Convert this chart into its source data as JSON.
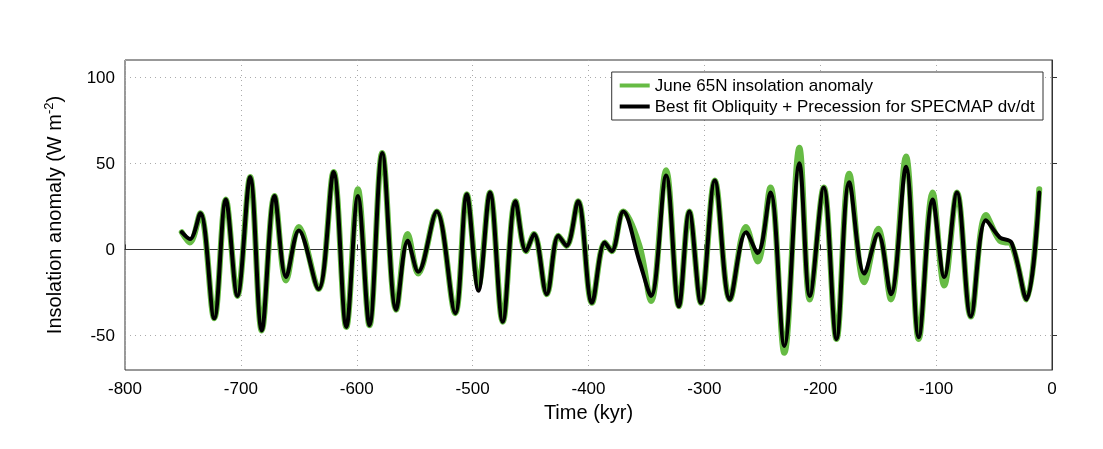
{
  "chart_data": {
    "type": "line",
    "xlabel": "Time (kyr)",
    "ylabel": "Insolation anomaly (W m$^{-2}$)",
    "x": [
      -751,
      -744,
      -735,
      -723,
      -713,
      -703,
      -692,
      -682,
      -671,
      -661,
      -650,
      -633,
      -620,
      -609,
      -599,
      -589,
      -578,
      -566,
      -556,
      -547,
      -531,
      -515,
      -505,
      -495,
      -485,
      -474,
      -463,
      -454,
      -447,
      -436,
      -426,
      -419,
      -409,
      -397,
      -386,
      -380,
      -370,
      -356,
      -346,
      -333,
      -322,
      -313,
      -303,
      -291,
      -278,
      -264,
      -254,
      -243,
      -231,
      -218,
      -209,
      -197,
      -186,
      -175,
      -162,
      -150,
      -139,
      -126,
      -115,
      -103,
      -93,
      -82,
      -70,
      -57,
      -45,
      -35,
      -22,
      -11
    ],
    "series": [
      {
        "name": "June 65N insolation anomaly",
        "color": "#66bb44",
        "values": [
          10,
          4,
          21,
          -40,
          29,
          -27,
          42,
          -47,
          31,
          -18,
          13,
          -23,
          45,
          -45,
          35,
          -44,
          56,
          -35,
          9,
          -14,
          22,
          -37,
          32,
          -21,
          33,
          -42,
          28,
          -1,
          9,
          -26,
          8,
          2,
          28,
          -31,
          4,
          -1,
          22,
          2,
          -30,
          46,
          -33,
          22,
          -31,
          40,
          -29,
          13,
          -7,
          36,
          -60,
          59,
          -29,
          36,
          -52,
          44,
          -19,
          12,
          -29,
          54,
          -52,
          33,
          -21,
          33,
          -39,
          20,
          5,
          3,
          -29,
          35
        ]
      },
      {
        "name": "Best fit Obliquity + Precession for SPECMAP dv/dt",
        "color": "#000000",
        "values": [
          10,
          6,
          21,
          -40,
          29,
          -27,
          42,
          -47,
          31,
          -16,
          11,
          -23,
          45,
          -45,
          31,
          -44,
          56,
          -35,
          5,
          -13,
          22,
          -37,
          32,
          -24,
          33,
          -42,
          28,
          -1,
          9,
          -26,
          8,
          2,
          28,
          -31,
          4,
          -1,
          22,
          -7,
          -27,
          43,
          -33,
          22,
          -31,
          40,
          -29,
          10,
          -2,
          33,
          -56,
          50,
          -27,
          36,
          -52,
          39,
          -14,
          9,
          -26,
          48,
          -51,
          29,
          -16,
          33,
          -39,
          17,
          7,
          4,
          -29,
          33
        ]
      }
    ],
    "xlim": [
      -800,
      0
    ],
    "xticks": [
      -800,
      -700,
      -600,
      -500,
      -400,
      -300,
      -200,
      -100,
      0
    ],
    "ylim": [
      -70,
      110
    ],
    "yticks": [
      -50,
      0,
      50,
      100
    ],
    "grid": true,
    "legend": "top right",
    "marker": "none",
    "line_style": "solid"
  }
}
